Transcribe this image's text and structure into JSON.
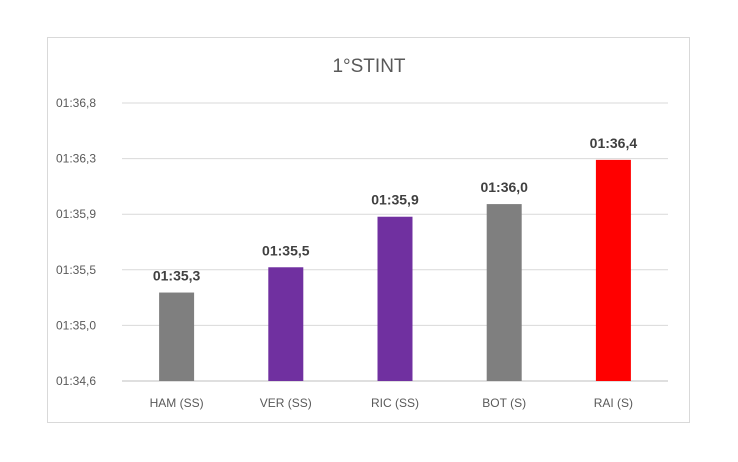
{
  "chart_data": {
    "type": "bar",
    "title": "1°STINT",
    "categories": [
      "HAM (SS)",
      "VER (SS)",
      "RIC (SS)",
      "BOT (S)",
      "RAI (S)"
    ],
    "values": [
      "01:35,3",
      "01:35,5",
      "01:35,9",
      "01:36,0",
      "01:36,4"
    ],
    "values_seconds": [
      95.3,
      95.5,
      95.9,
      96.0,
      96.35
    ],
    "y_tick_labels": [
      "01:34,6",
      "01:35,0",
      "01:35,5",
      "01:35,9",
      "01:36,3",
      "01:36,8"
    ],
    "ylim_seconds": [
      94.6,
      96.8
    ],
    "xlabel": "",
    "ylabel": "",
    "grid": true,
    "legend": "none",
    "colors": [
      "#7f7f7f",
      "#7030a0",
      "#7030a0",
      "#7f7f7f",
      "#ff0000"
    ]
  }
}
